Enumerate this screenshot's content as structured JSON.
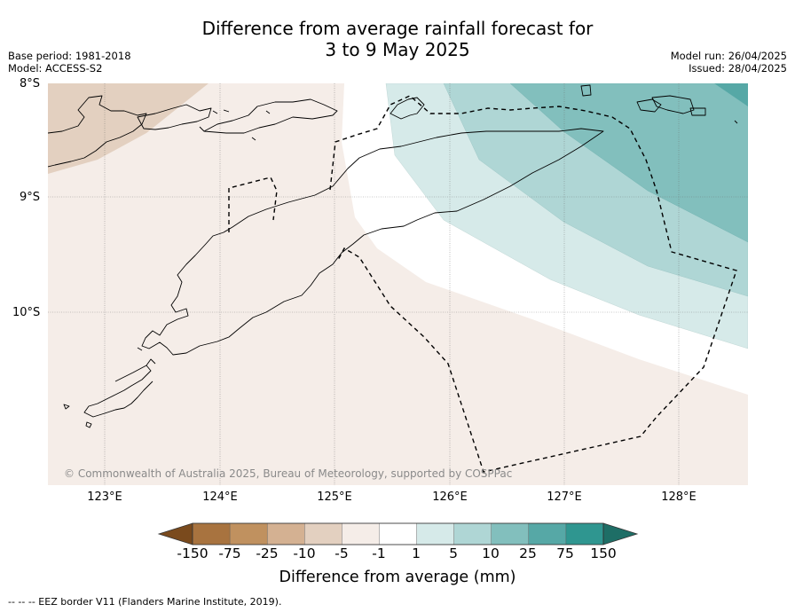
{
  "title_line1": "Difference from average rainfall forecast for",
  "title_line2": "3 to 9 May 2025",
  "meta_left": {
    "base_period": "Base period: 1981-2018",
    "model": "Model: ACCESS-S2"
  },
  "meta_right": {
    "model_run": "Model run: 26/04/2025",
    "issued": "Issued: 28/04/2025"
  },
  "latitude_labels": [
    "8°S",
    "9°S",
    "10°S"
  ],
  "longitude_labels": [
    "123°E",
    "124°E",
    "125°E",
    "126°E",
    "127°E",
    "128°E"
  ],
  "copyright": "© Commonwealth of Australia 2025, Bureau of Meteorology, supported by COSPPac",
  "colorbar": {
    "ticks": [
      "-150",
      "-75",
      "-25",
      "-10",
      "-5",
      "-1",
      "1",
      "5",
      "10",
      "25",
      "75",
      "150"
    ],
    "colors": [
      "#7a4a1d",
      "#a8733f",
      "#c0915f",
      "#d4b192",
      "#e3d0c0",
      "#f5ede8",
      "#ffffff",
      "#d6eae9",
      "#afd6d5",
      "#82bfbd",
      "#56a8a6",
      "#2f9690",
      "#1e6e66"
    ],
    "label": "Difference from average (mm)"
  },
  "eez_note": "--  --  -- EEZ border V11 (Flanders Marine Institute, 2019)."
}
